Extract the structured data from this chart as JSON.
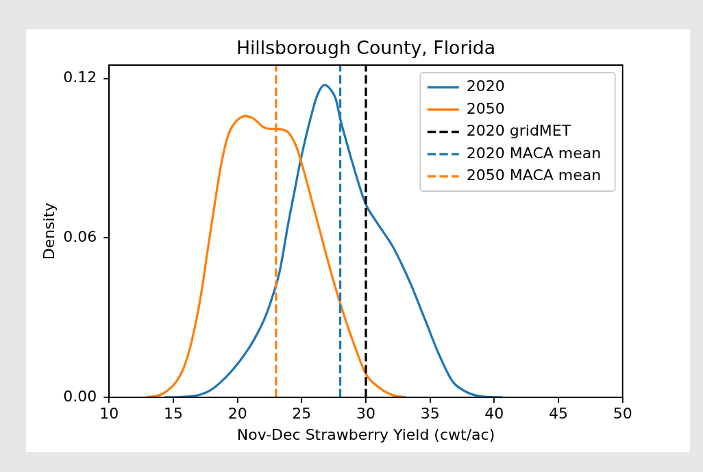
{
  "chart_data": {
    "type": "line",
    "title": "Hillsborough County, Florida",
    "xlabel": "Nov-Dec Strawberry Yield (cwt/ac)",
    "ylabel": "Density",
    "series": [
      {
        "name": "2020",
        "color": "#1f77b4",
        "x": [
          14.4,
          16.45,
          17.87,
          19.12,
          20.19,
          21.26,
          22.15,
          22.86,
          23.3,
          23.93,
          24.46,
          24.9,
          25.7,
          26.23,
          26.77,
          27.13,
          27.66,
          28.02,
          28.56,
          28.91,
          30.0,
          30.69,
          31.4,
          32.1,
          32.82,
          33.54,
          34.61,
          35.68,
          36.75,
          37.64,
          38.88,
          40.58
        ],
        "values": [
          0,
          0.0004,
          0.0026,
          0.0077,
          0.0137,
          0.0215,
          0.0301,
          0.04,
          0.0477,
          0.0649,
          0.078,
          0.0889,
          0.1052,
          0.1138,
          0.1175,
          0.1165,
          0.1121,
          0.1044,
          0.0949,
          0.0889,
          0.0725,
          0.067,
          0.0619,
          0.0567,
          0.0498,
          0.0421,
          0.0292,
          0.0163,
          0.006,
          0.0025,
          0.0004,
          0
        ]
      },
      {
        "name": "2050",
        "color": "#ff7f0e",
        "x": [
          12.9,
          14.31,
          15.74,
          16.45,
          17.16,
          17.69,
          18.23,
          18.76,
          19.29,
          19.83,
          20.63,
          21.26,
          21.97,
          22.5,
          23.57,
          24.1,
          24.64,
          25.17,
          25.89,
          26.6,
          27.31,
          28.02,
          29.09,
          30.0,
          31.05,
          32.1,
          33.1
        ],
        "values": [
          0,
          0.0017,
          0.0103,
          0.0215,
          0.0387,
          0.0559,
          0.073,
          0.0885,
          0.0988,
          0.1035,
          0.1058,
          0.1048,
          0.1018,
          0.101,
          0.1007,
          0.0988,
          0.0936,
          0.0851,
          0.0722,
          0.0593,
          0.0466,
          0.035,
          0.0198,
          0.0088,
          0.0036,
          0.0008,
          0
        ]
      },
      {
        "name": "2020 gridMET",
        "color": "#000000",
        "line_style": "dashed",
        "x": [
          30,
          30
        ],
        "values": [
          0,
          0.125
        ]
      },
      {
        "name": "2020 MACA mean",
        "color": "#1f77b4",
        "line_style": "dashed",
        "x": [
          28,
          28
        ],
        "values": [
          0,
          0.125
        ]
      },
      {
        "name": "2050 MACA mean",
        "color": "#ff7f0e",
        "line_style": "dashed",
        "x": [
          23,
          23
        ],
        "values": [
          0,
          0.125
        ]
      }
    ],
    "xlim": [
      10,
      50
    ],
    "xticks": [
      10,
      15,
      20,
      25,
      30,
      35,
      40,
      45,
      50
    ],
    "ylim": [
      0,
      0.125
    ],
    "yticks": [
      {
        "value": 0,
        "label": "0.00"
      },
      0.06,
      0.12
    ],
    "legend": "top right",
    "marker": "none"
  }
}
